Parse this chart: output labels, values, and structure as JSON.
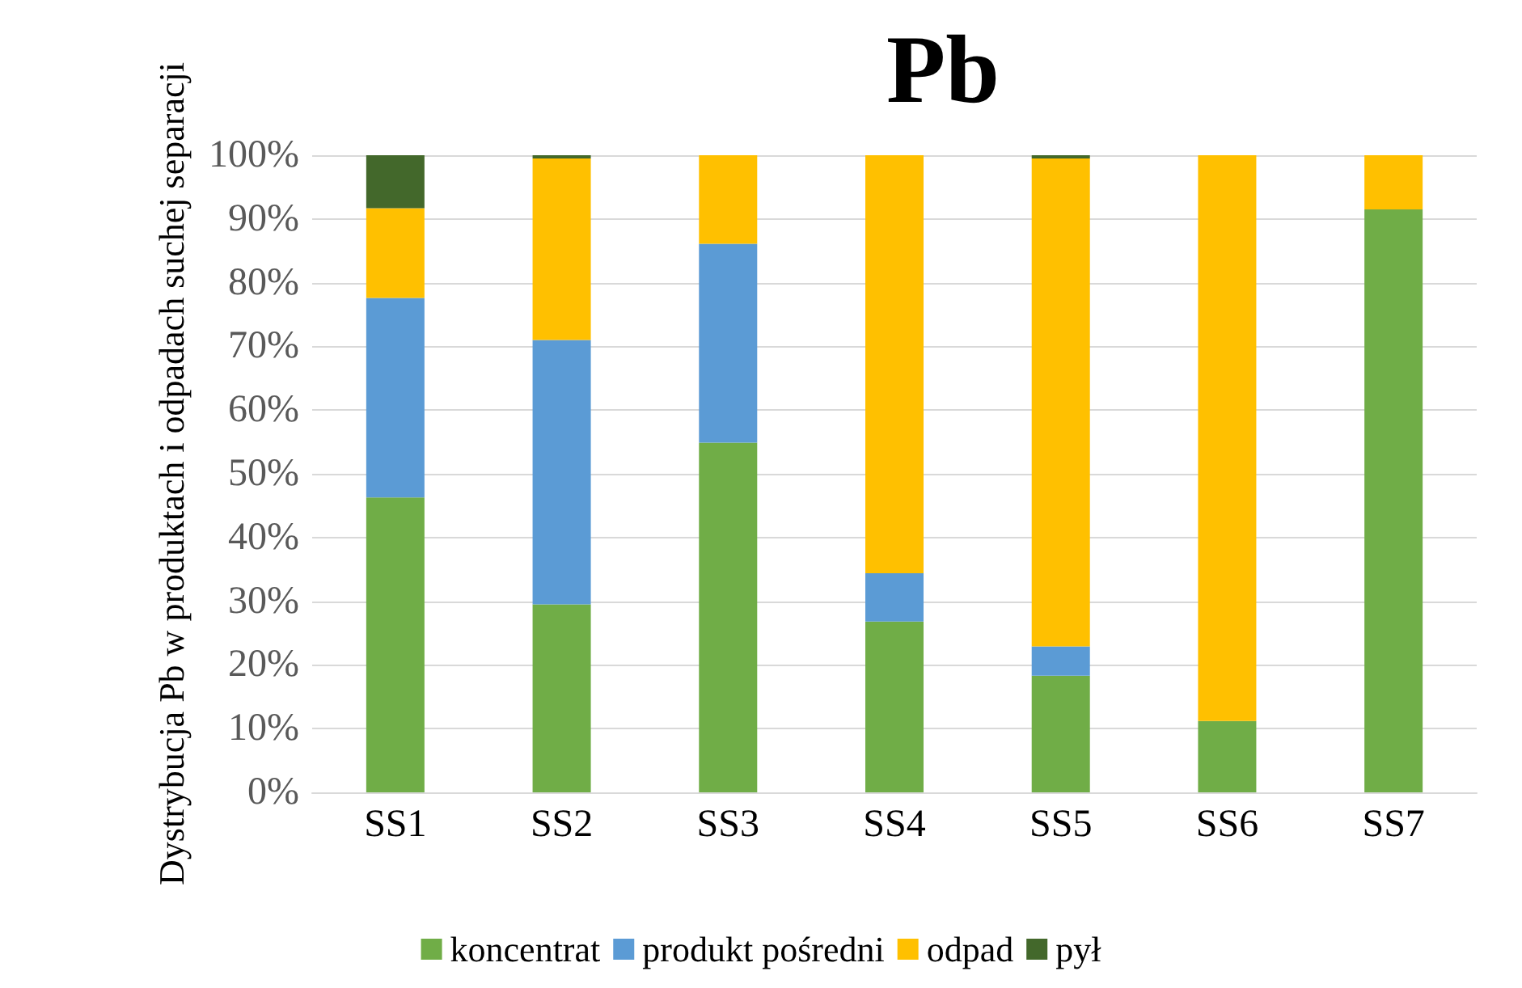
{
  "chart_data": {
    "type": "bar",
    "title": "Pb",
    "ylabel": "Dystrybucja Pb w produktach i odpadach suchej separacji",
    "categories": [
      "SS1",
      "SS2",
      "SS3",
      "SS4",
      "SS5",
      "SS6",
      "SS7"
    ],
    "stacked": true,
    "series": [
      {
        "name": "koncentrat",
        "color": "#70ad47",
        "values": [
          46.3,
          29.5,
          54.9,
          26.8,
          18.3,
          11.2,
          91.5
        ]
      },
      {
        "name": "produkt pośredni",
        "color": "#5b9bd5",
        "values": [
          31.3,
          41.5,
          31.2,
          7.6,
          4.6,
          0,
          0
        ]
      },
      {
        "name": "odpad",
        "color": "#ffc000",
        "values": [
          14.1,
          28.5,
          13.9,
          65.6,
          76.6,
          88.8,
          8.5
        ]
      },
      {
        "name": "pył",
        "color": "#43682b",
        "values": [
          8.3,
          0.5,
          0,
          0,
          0.5,
          0,
          0
        ]
      }
    ],
    "ylim": [
      0,
      100
    ],
    "yticks": [
      {
        "value": 0,
        "label": "0%"
      },
      {
        "value": 10,
        "label": "10%"
      },
      {
        "value": 20,
        "label": "20%"
      },
      {
        "value": 30,
        "label": "30%"
      },
      {
        "value": 40,
        "label": "40%"
      },
      {
        "value": 50,
        "label": "50%"
      },
      {
        "value": 60,
        "label": "60%"
      },
      {
        "value": 70,
        "label": "70%"
      },
      {
        "value": 80,
        "label": "80%"
      },
      {
        "value": 90,
        "label": "90%"
      },
      {
        "value": 100,
        "label": "100%"
      }
    ],
    "grid": "y",
    "legend": "bottom"
  }
}
